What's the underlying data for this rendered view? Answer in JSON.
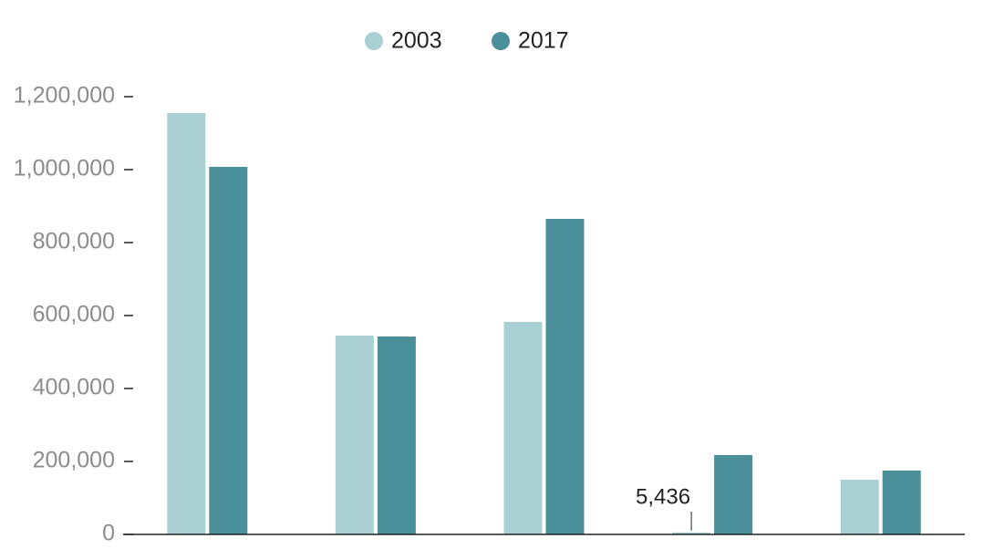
{
  "chart_data": {
    "type": "bar",
    "categories": [
      null,
      null,
      null,
      null,
      null
    ],
    "series": [
      {
        "name": "2003",
        "color": "#aad0d3",
        "values": [
          1155000,
          545000,
          582500,
          5436,
          150000
        ],
        "value_labels": [
          null,
          null,
          null,
          "5,436",
          null
        ]
      },
      {
        "name": "2017",
        "color": "#4a8f9a",
        "values": [
          1007500,
          542500,
          865000,
          217500,
          175000
        ]
      }
    ],
    "ylim": [
      0,
      1200000
    ],
    "yticks": [
      0,
      {
        "value": 200000,
        "label": "200,000"
      },
      {
        "value": 400000,
        "label": "400,000"
      },
      {
        "value": 600000,
        "label": "600,000"
      },
      {
        "value": 800000,
        "label": "800,000"
      },
      {
        "value": 1000000,
        "label": "1,000,000"
      },
      {
        "value": 1200000,
        "label": "1,200,000"
      }
    ],
    "legend": "top"
  }
}
